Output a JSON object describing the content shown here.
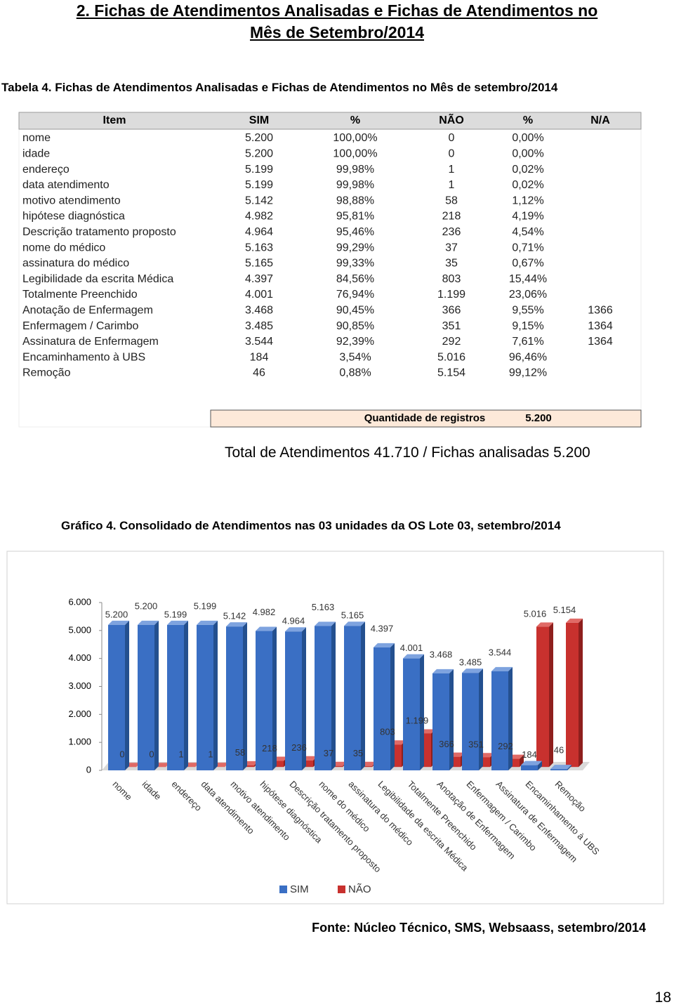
{
  "heading": [
    "2. Fichas de Atendimentos Analisadas e Fichas de Atendimentos no",
    "Mês de Setembro/2014"
  ],
  "table_caption": "Tabela 4. Fichas de Atendimentos Analisadas e Fichas de Atendimentos no Mês de setembro/2014",
  "table": {
    "headers": [
      "Item",
      "SIM",
      "%",
      "NÃO",
      "%",
      "N/A"
    ],
    "rows": [
      [
        "nome",
        "5.200",
        "100,00%",
        "0",
        "0,00%",
        ""
      ],
      [
        "idade",
        "5.200",
        "100,00%",
        "0",
        "0,00%",
        ""
      ],
      [
        "endereço",
        "5.199",
        "99,98%",
        "1",
        "0,02%",
        ""
      ],
      [
        "data atendimento",
        "5.199",
        "99,98%",
        "1",
        "0,02%",
        ""
      ],
      [
        "motivo atendimento",
        "5.142",
        "98,88%",
        "58",
        "1,12%",
        ""
      ],
      [
        "hipótese diagnóstica",
        "4.982",
        "95,81%",
        "218",
        "4,19%",
        ""
      ],
      [
        "Descrição tratamento proposto",
        "4.964",
        "95,46%",
        "236",
        "4,54%",
        ""
      ],
      [
        "nome do médico",
        "5.163",
        "99,29%",
        "37",
        "0,71%",
        ""
      ],
      [
        "assinatura do médico",
        "5.165",
        "99,33%",
        "35",
        "0,67%",
        ""
      ],
      [
        "Legibilidade da escrita Médica",
        "4.397",
        "84,56%",
        "803",
        "15,44%",
        ""
      ],
      [
        "Totalmente Preenchido",
        "4.001",
        "76,94%",
        "1.199",
        "23,06%",
        ""
      ],
      [
        "Anotação de Enfermagem",
        "3.468",
        "90,45%",
        "366",
        "9,55%",
        "1366"
      ],
      [
        "Enfermagem / Carimbo",
        "3.485",
        "90,85%",
        "351",
        "9,15%",
        "1364"
      ],
      [
        "Assinatura de Enfermagem",
        "3.544",
        "92,39%",
        "292",
        "7,61%",
        "1364"
      ],
      [
        "Encaminhamento à UBS",
        "184",
        "3,54%",
        "5.016",
        "96,46%",
        ""
      ],
      [
        "Remoção",
        "46",
        "0,88%",
        "5.154",
        "99,12%",
        ""
      ]
    ],
    "total_label": "Quantidade de registros",
    "total_value": "5.200"
  },
  "summary": "Total de Atendimentos 41.710 / Fichas analisadas 5.200",
  "chart_caption": "Gráfico 4. Consolidado de Atendimentos nas 03 unidades da OS Lote 03, setembro/2014",
  "chart_data": {
    "type": "bar",
    "categories": [
      "nome",
      "idade",
      "endereço",
      "data atendimento",
      "motivo atendimento",
      "hipótese diagnóstica",
      "Descrição tratamento proposto",
      "nome do médico",
      "assinatura do médico",
      "Legibilidade da escrita Médica",
      "Totalmente Preenchido",
      "Anotação de Enfermagem",
      "Enfermagem / Carimbo",
      "Assinatura de Enfermagem",
      "Encaminhamento à UBS",
      "Remoção"
    ],
    "series": [
      {
        "name": "SIM",
        "color": "#3a6fc4",
        "values": [
          5200,
          5200,
          5199,
          5199,
          5142,
          4982,
          4964,
          5163,
          5165,
          4397,
          4001,
          3468,
          3485,
          3544,
          184,
          46
        ],
        "value_labels": [
          "5.200",
          "5.200",
          "5.199",
          "5.199",
          "5.142",
          "4.982",
          "4.964",
          "5.163",
          "5.165",
          "4.397",
          "4.001",
          "3.468",
          "3.485",
          "3.544",
          "184",
          "46"
        ]
      },
      {
        "name": "NÃO",
        "color": "#c8312e",
        "values": [
          0,
          0,
          1,
          1,
          58,
          218,
          236,
          37,
          35,
          803,
          1199,
          366,
          351,
          292,
          5016,
          5154
        ],
        "value_labels": [
          "0",
          "0",
          "1",
          "1",
          "58",
          "218",
          "236",
          "37",
          "35",
          "803",
          "1.199",
          "366",
          "351",
          "292",
          "5.016",
          "5.154"
        ]
      }
    ],
    "ylim": [
      0,
      6000
    ],
    "yticks": [
      0,
      {
        "value": 1000,
        "label": "1.000"
      },
      {
        "value": 2000,
        "label": "2.000"
      },
      {
        "value": 3000,
        "label": "3.000"
      },
      {
        "value": 4000,
        "label": "4.000"
      },
      {
        "value": 5000,
        "label": "5.000"
      },
      {
        "value": 6000,
        "label": "6.000"
      }
    ],
    "legend": "bottom"
  },
  "source": "Fonte: Núcleo Técnico, SMS, Websaass,  setembro/2014",
  "page_number": "18"
}
